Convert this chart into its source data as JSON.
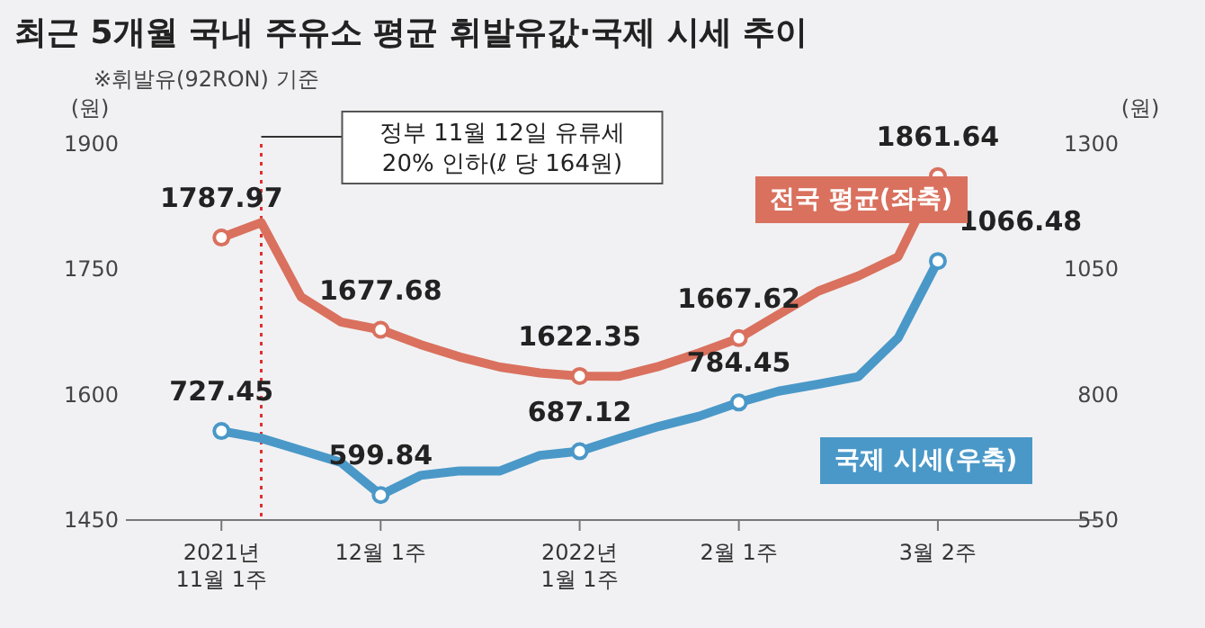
{
  "chart_data": {
    "type": "line",
    "title": "최근 5개월 국내 주유소 평균 휘발유값·국제 시세 추이",
    "subtitle": "※휘발유(92RON) 기준",
    "ylabel": "(원)",
    "y2label": "(원)",
    "categories": [
      "2021년\n11월 1주",
      null,
      null,
      null,
      "12월 1주",
      null,
      null,
      null,
      null,
      "2022년\n1월 1주",
      null,
      null,
      null,
      "2월 1주",
      null,
      null,
      null,
      null,
      "3월 2주"
    ],
    "series": [
      {
        "name": "전국 평균(좌축)",
        "color": "#d9715e",
        "values": [
          1787.97,
          1806,
          1717,
          1687,
          1677.68,
          1660,
          1645,
          1633,
          1626,
          1622.35,
          1622,
          1634,
          1650,
          1667.62,
          1696,
          1724,
          1742,
          1765,
          1861.64
        ],
        "value_labels": [
          "1787.97",
          null,
          null,
          null,
          "1677.68",
          null,
          null,
          null,
          null,
          "1622.35",
          null,
          null,
          null,
          "1667.62",
          null,
          null,
          null,
          null,
          "1861.64"
        ]
      },
      {
        "name": "국제 시세(우축)",
        "color": "#4a98c8",
        "axis": "y2",
        "values": [
          727.45,
          713,
          689,
          665,
          599.84,
          639,
          648,
          648,
          679,
          687.12,
          713,
          737,
          757,
          784.45,
          807,
          821,
          836,
          913,
          1066.48
        ],
        "value_labels": [
          "727.45",
          null,
          null,
          null,
          "599.84",
          null,
          null,
          null,
          null,
          "687.12",
          null,
          null,
          null,
          "784.45",
          null,
          null,
          null,
          null,
          "1066.48"
        ]
      }
    ],
    "ylim": [
      1450,
      1900
    ],
    "yticks": [
      1450,
      1600,
      1750,
      1900
    ],
    "y2lim": [
      550,
      1300
    ],
    "y2ticks": [
      550,
      800,
      1050,
      1300
    ],
    "annotations": [
      "정부 11월 12일 유류세\n20% 인하(ℓ 당 164원)"
    ],
    "line_style": "solid",
    "legend": "right"
  }
}
